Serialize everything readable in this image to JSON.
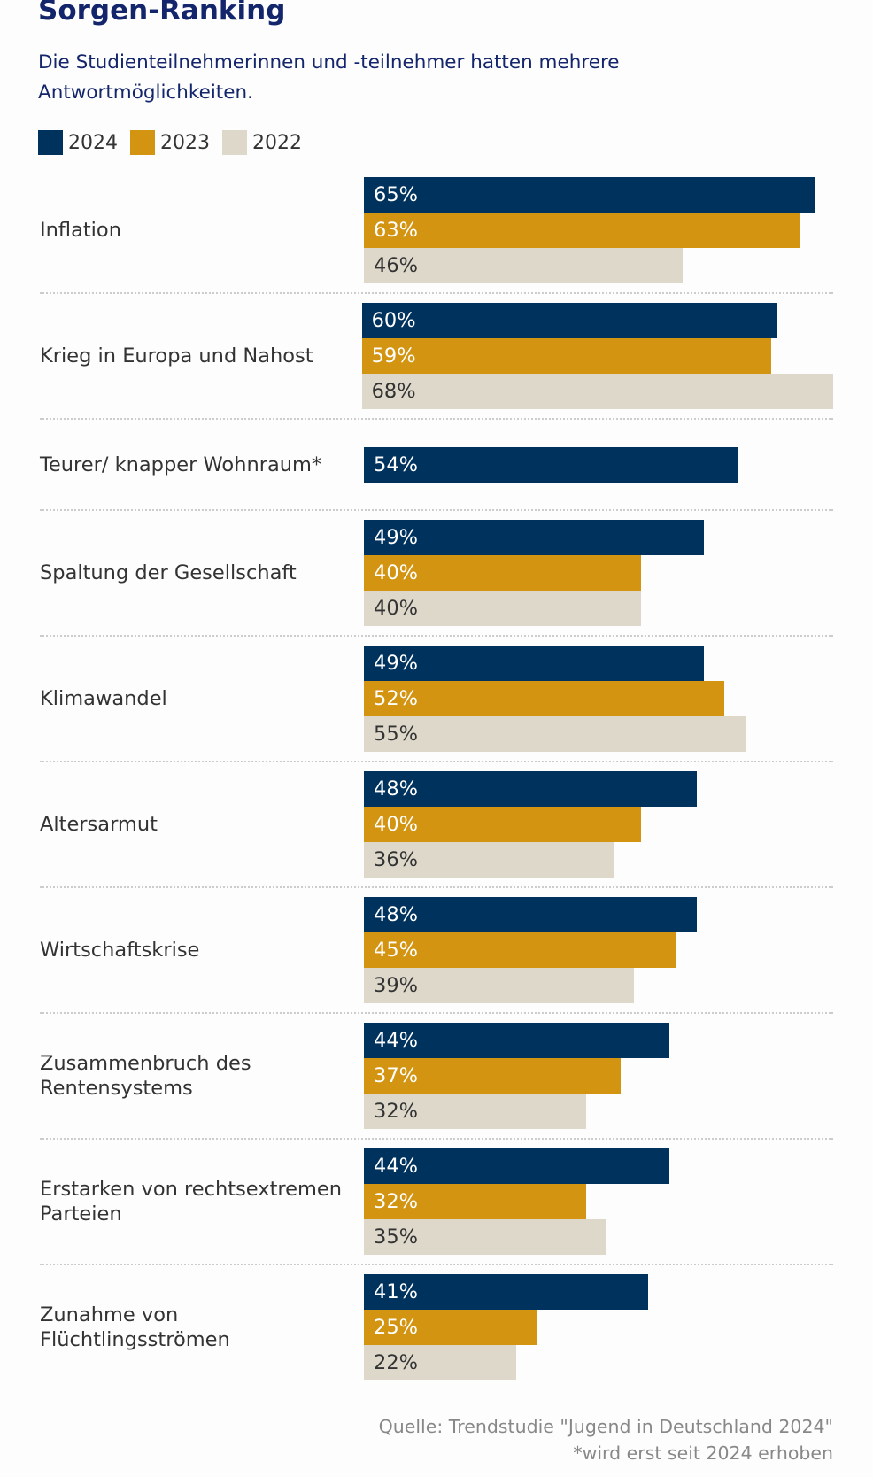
{
  "title": "Sorgen-Ranking",
  "subtitle": "Die Studienteilnehmerinnen und -teilnehmer hatten mehrere Antwortmöglichkeiten.",
  "footer": {
    "source": "Quelle: Trendstudie \"Jugend in Deutschland 2024\"",
    "note": "*wird erst seit 2024 erhoben"
  },
  "chart_data": {
    "type": "bar",
    "orientation": "horizontal",
    "legend_position": "top-left",
    "grid": false,
    "xlim": [
      0,
      68
    ],
    "categories": [
      "Inflation",
      "Krieg in Europa und Nahost",
      "Teurer/ knapper Wohnraum*",
      "Spaltung der Gesellschaft",
      "Klimawandel",
      "Altersarmut",
      "Wirtschaftskrise",
      "Zusammenbruch des Rentensystems",
      "Erstarken von rechtsextremen Parteien",
      "Zunahme von Flüchtlingsströmen"
    ],
    "series": [
      {
        "name": "2024",
        "color": "#00325e",
        "text_color": "#ffffff",
        "values": [
          65,
          60,
          54,
          49,
          49,
          48,
          48,
          44,
          44,
          41
        ]
      },
      {
        "name": "2023",
        "color": "#d39412",
        "text_color": "#ffffff",
        "values": [
          63,
          59,
          null,
          40,
          52,
          40,
          45,
          37,
          32,
          25
        ]
      },
      {
        "name": "2022",
        "color": "#ded8cb",
        "text_color": "#333333",
        "values": [
          46,
          68,
          null,
          40,
          55,
          36,
          39,
          32,
          35,
          22
        ]
      }
    ],
    "unit": "%"
  }
}
